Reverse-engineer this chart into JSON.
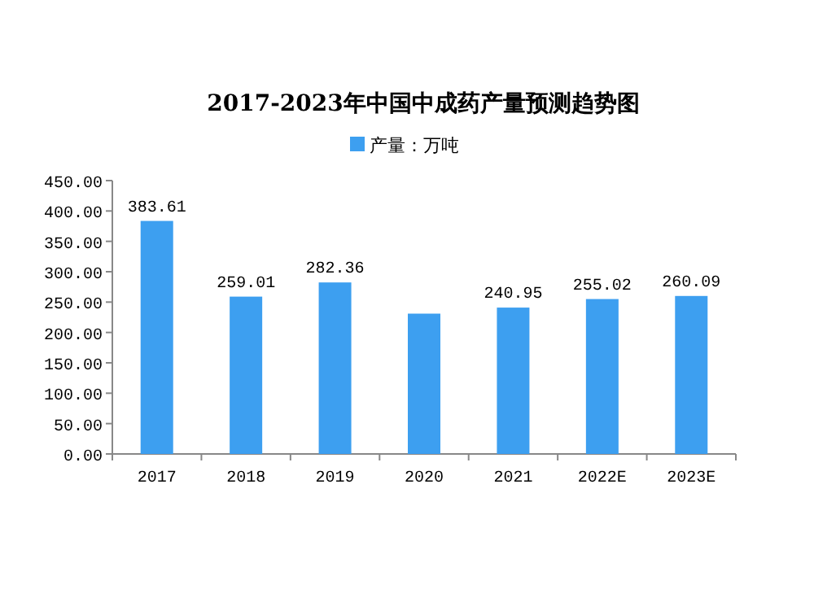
{
  "chart_data": {
    "type": "bar",
    "title": "2017-2023年中国中成药产量预测趋势图",
    "categories": [
      "2017",
      "2018",
      "2019",
      "2020",
      "2021",
      "2022E",
      "2023E"
    ],
    "series": [
      {
        "name": "产量：万吨",
        "color": "#3d9ff0",
        "values": [
          383.61,
          259.01,
          282.36,
          231.0,
          240.95,
          255.02,
          260.09
        ]
      }
    ],
    "ylim": [
      0,
      450
    ],
    "yticks": [
      {
        "value": 0,
        "label": "0.00"
      },
      {
        "value": 50,
        "label": "50.00"
      },
      {
        "value": 100,
        "label": "100.00"
      },
      {
        "value": 150,
        "label": "150.00"
      },
      {
        "value": 200,
        "label": "200.00"
      },
      {
        "value": 250,
        "label": "250.00"
      },
      {
        "value": 300,
        "label": "300.00"
      },
      {
        "value": 350,
        "label": "350.00"
      },
      {
        "value": 400,
        "label": "400.00"
      },
      {
        "value": 450,
        "label": "450.00"
      }
    ],
    "value_labels": [
      "383.61",
      "259.01",
      "282.36",
      null,
      "240.95",
      "255.02",
      "260.09"
    ],
    "legend": "top",
    "grid": false
  }
}
